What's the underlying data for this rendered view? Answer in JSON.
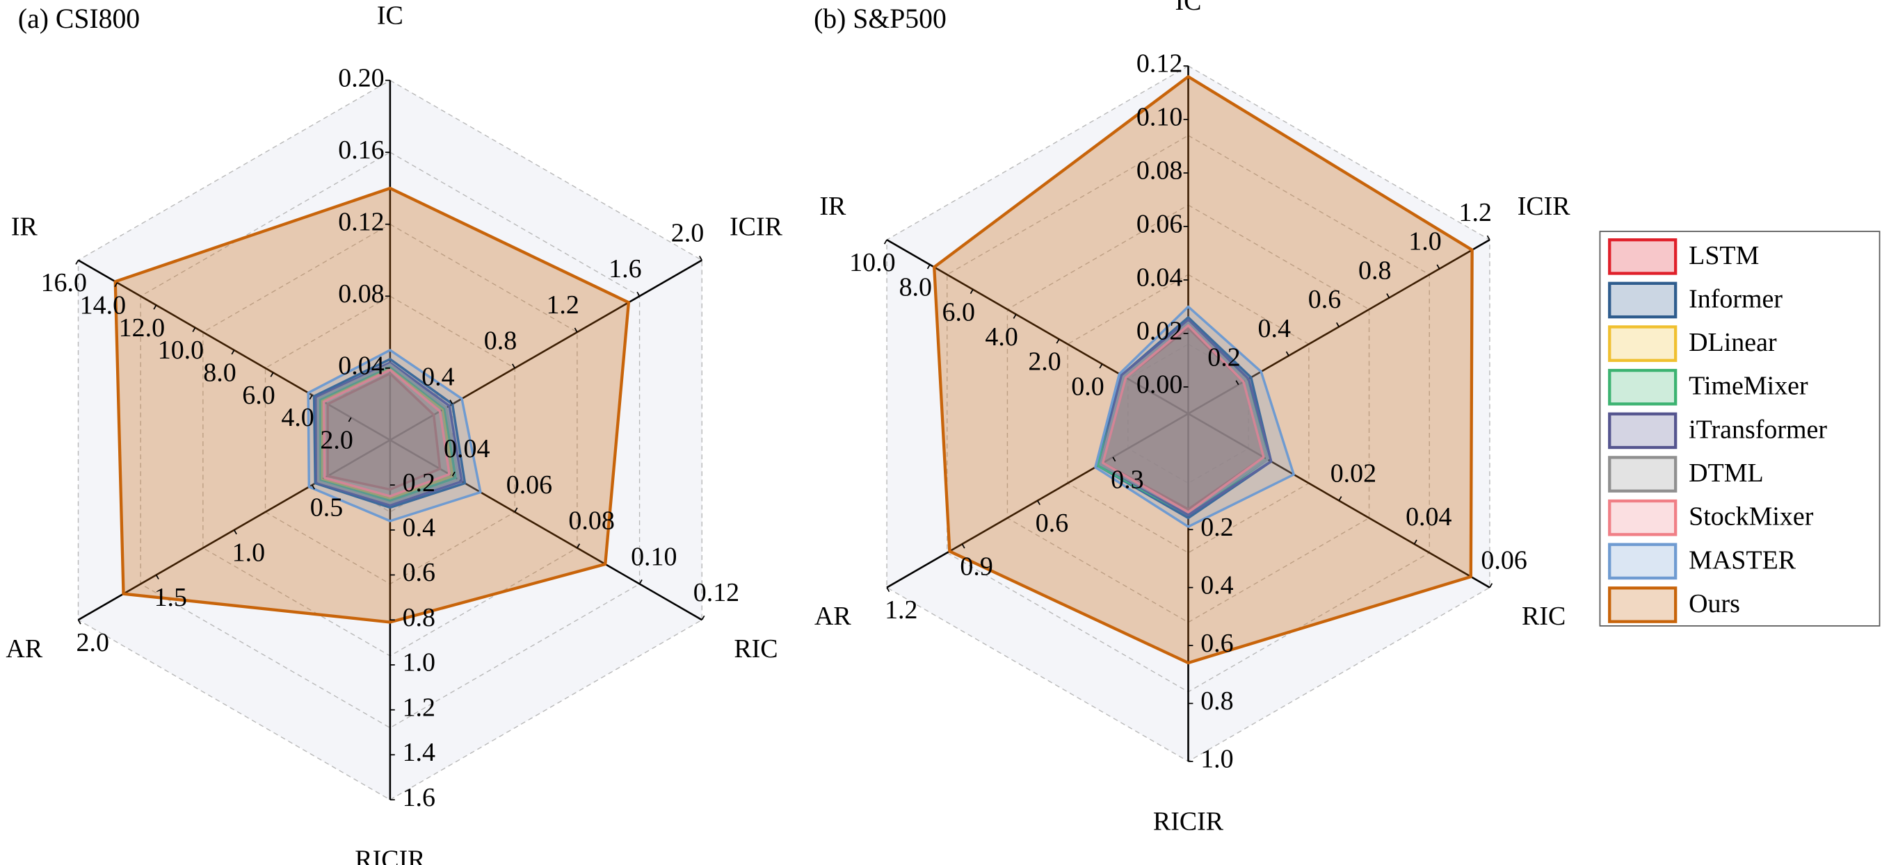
{
  "chart_data": {
    "type": "radar",
    "series": [
      {
        "name": "LSTM",
        "color": "#e0202a"
      },
      {
        "name": "Informer",
        "color": "#2f5d8e"
      },
      {
        "name": "DLinear",
        "color": "#f0c030"
      },
      {
        "name": "TimeMixer",
        "color": "#3cb371"
      },
      {
        "name": "iTransformer",
        "color": "#55558f"
      },
      {
        "name": "DTML",
        "color": "#909090"
      },
      {
        "name": "StockMixer",
        "color": "#f07f86"
      },
      {
        "name": "MASTER",
        "color": "#6f9bd1"
      },
      {
        "name": "Ours",
        "color": "#c8640a"
      }
    ],
    "panels": [
      {
        "title": "(a) CSI800",
        "axes": [
          {
            "name": "IC",
            "lim": [
              0,
              0.2
            ],
            "ticks": [
              0.04,
              0.08,
              0.12,
              0.16,
              {
                "value": 0.2,
                "label": "0.20"
              }
            ]
          },
          {
            "name": "ICIR",
            "lim": [
              0,
              2
            ],
            "ticks": [
              0.4,
              0.8,
              1.2,
              1.6,
              {
                "value": 2,
                "label": "2.0"
              }
            ]
          },
          {
            "name": "RIC",
            "lim": [
              0.02,
              0.12
            ],
            "ticks": [
              0.04,
              0.06,
              0.08,
              {
                "value": 0.1,
                "label": "0.10"
              },
              0.12
            ]
          },
          {
            "name": "RICIR",
            "lim": [
              0,
              1.6
            ],
            "ticks": [
              0.2,
              0.4,
              0.6,
              0.8,
              {
                "value": 1,
                "label": "1.0"
              },
              1.2,
              1.4,
              1.6
            ]
          },
          {
            "name": "AR",
            "lim": [
              0,
              2
            ],
            "ticks": [
              0.5,
              {
                "value": 1,
                "label": "1.0"
              },
              1.5,
              {
                "value": 2,
                "label": "2.0"
              }
            ]
          },
          {
            "name": "IR",
            "lim": [
              0,
              16
            ],
            "ticks": [
              {
                "value": 2,
                "label": "2.0"
              },
              {
                "value": 4,
                "label": "4.0"
              },
              {
                "value": 6,
                "label": "6.0"
              },
              {
                "value": 8,
                "label": "8.0"
              },
              {
                "value": 10,
                "label": "10.0"
              },
              {
                "value": 12,
                "label": "12.0"
              },
              {
                "value": 14,
                "label": "14.0"
              },
              {
                "value": 16,
                "label": "16.0"
              }
            ]
          }
        ],
        "values": [
          [
            0.037,
            0.28,
            0.036,
            0.22,
            0.4,
            3.2
          ],
          [
            0.045,
            0.4,
            0.044,
            0.3,
            0.48,
            3.9
          ],
          [
            0.04,
            0.34,
            0.04,
            0.26,
            0.44,
            3.5
          ],
          [
            0.041,
            0.35,
            0.041,
            0.27,
            0.45,
            3.6
          ],
          [
            0.043,
            0.38,
            0.043,
            0.29,
            0.47,
            3.8
          ],
          [
            0.042,
            0.36,
            0.042,
            0.28,
            0.46,
            3.7
          ],
          [
            0.039,
            0.32,
            0.039,
            0.25,
            0.42,
            3.4
          ],
          [
            0.05,
            0.46,
            0.049,
            0.36,
            0.52,
            4.2
          ],
          [
            0.14,
            1.53,
            0.089,
            0.81,
            1.71,
            14.1
          ]
        ]
      },
      {
        "title": "(b) S&P500",
        "axes": [
          {
            "name": "IC",
            "lim": [
              -0.01,
              0.12
            ],
            "ticks": [
              {
                "value": 0,
                "label": "0.00"
              },
              0.02,
              0.04,
              0.06,
              0.08,
              {
                "value": 0.1,
                "label": "0.10"
              },
              0.12
            ]
          },
          {
            "name": "ICIR",
            "lim": [
              0,
              1.2
            ],
            "ticks": [
              0.2,
              0.4,
              0.6,
              0.8,
              {
                "value": 1,
                "label": "1.0"
              },
              1.2
            ]
          },
          {
            "name": "RIC",
            "lim": [
              -0.02,
              0.06
            ],
            "ticks": [
              0.02,
              0.04,
              0.06
            ]
          },
          {
            "name": "RICIR",
            "lim": [
              -0.2,
              1
            ],
            "ticks": [
              0.2,
              0.4,
              0.6,
              0.8,
              {
                "value": 1,
                "label": "1.0"
              }
            ]
          },
          {
            "name": "AR",
            "lim": [
              0,
              1.2
            ],
            "ticks": [
              0.3,
              0.6,
              0.9,
              1.2
            ]
          },
          {
            "name": "IR",
            "lim": [
              -4,
              10
            ],
            "ticks": [
              {
                "value": 0,
                "label": "0.0"
              },
              {
                "value": 2,
                "label": "2.0"
              },
              {
                "value": 4,
                "label": "4.0"
              },
              {
                "value": 6,
                "label": "6.0"
              },
              {
                "value": 8,
                "label": "8.0"
              },
              {
                "value": 10,
                "label": "10.0"
              }
            ]
          }
        ],
        "values": [
          [
            0.022,
            0.22,
            0.0,
            0.13,
            0.34,
            -1.1
          ],
          [
            0.026,
            0.25,
            0.002,
            0.16,
            0.36,
            -0.9
          ],
          [
            0.024,
            0.23,
            0.001,
            0.14,
            0.35,
            -1.0
          ],
          [
            0.025,
            0.24,
            0.001,
            0.15,
            0.36,
            -1.0
          ],
          [
            0.025,
            0.24,
            0.002,
            0.15,
            0.35,
            -0.9
          ],
          [
            0.024,
            0.23,
            0.001,
            0.14,
            0.35,
            -1.0
          ],
          [
            0.023,
            0.22,
            0.0,
            0.14,
            0.34,
            -1.1
          ],
          [
            0.03,
            0.29,
            0.008,
            0.19,
            0.37,
            -0.8
          ],
          [
            0.116,
            1.13,
            0.055,
            0.66,
            0.95,
            7.8
          ]
        ]
      }
    ]
  }
}
